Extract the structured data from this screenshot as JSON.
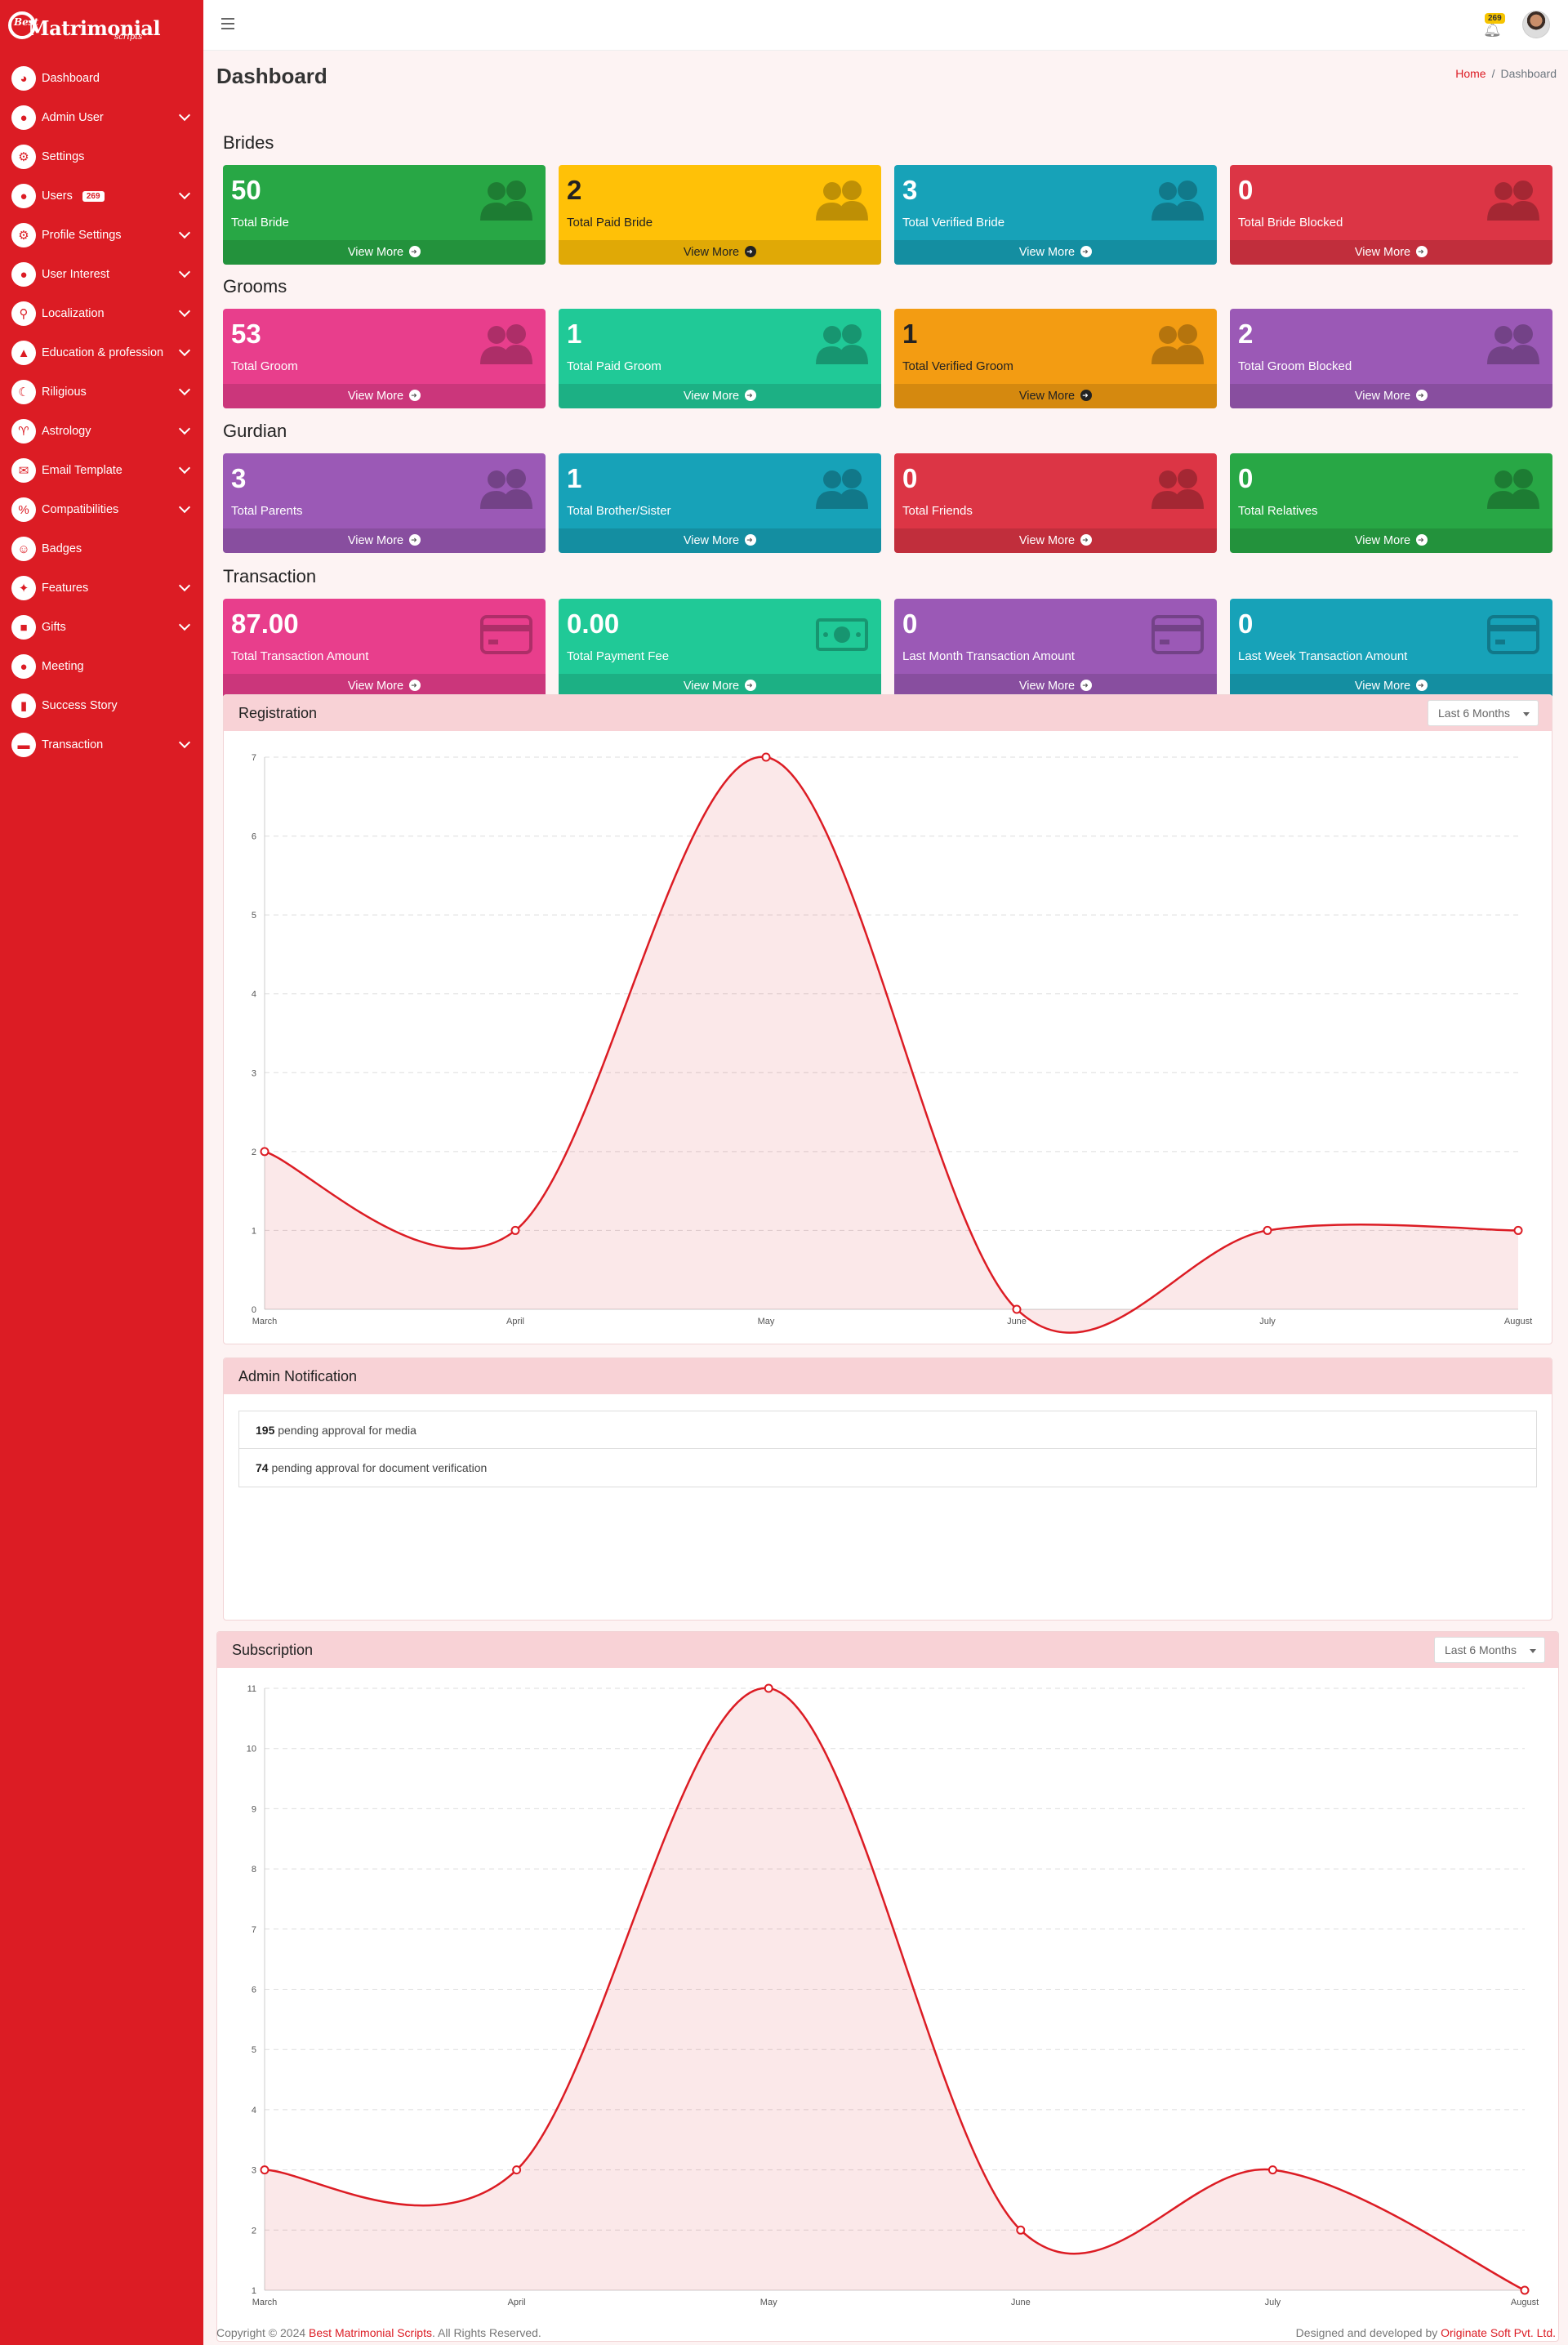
{
  "brand": {
    "name": "Matrimonial",
    "prefix": "Best",
    "suffix": "scripts"
  },
  "sidebar": {
    "items": [
      {
        "label": "Dashboard",
        "icon": "dashboard-icon",
        "glyph": "◕",
        "chevron": false
      },
      {
        "label": "Admin User",
        "icon": "user-icon",
        "glyph": "●",
        "chevron": true
      },
      {
        "label": "Settings",
        "icon": "gear-icon",
        "glyph": "⚙",
        "chevron": false
      },
      {
        "label": "Users",
        "icon": "users-icon",
        "glyph": "●",
        "chevron": true,
        "badge": "269"
      },
      {
        "label": "Profile Settings",
        "icon": "profile-settings-icon",
        "glyph": "⚙",
        "chevron": true
      },
      {
        "label": "User Interest",
        "icon": "user-interest-icon",
        "glyph": "●",
        "chevron": true
      },
      {
        "label": "Localization",
        "icon": "map-pin-icon",
        "glyph": "⚲",
        "chevron": true
      },
      {
        "label": "Education & profession",
        "icon": "graduation-cap-icon",
        "glyph": "▲",
        "chevron": true
      },
      {
        "label": "Riligious",
        "icon": "crescent-icon",
        "glyph": "☾",
        "chevron": true
      },
      {
        "label": "Astrology",
        "icon": "astrology-icon",
        "glyph": "♈",
        "chevron": true
      },
      {
        "label": "Email Template",
        "icon": "envelope-icon",
        "glyph": "✉",
        "chevron": true
      },
      {
        "label": "Compatibilities",
        "icon": "percent-icon",
        "glyph": "%",
        "chevron": true
      },
      {
        "label": "Badges",
        "icon": "badge-icon",
        "glyph": "☺",
        "chevron": false
      },
      {
        "label": "Features",
        "icon": "features-icon",
        "glyph": "✦",
        "chevron": true
      },
      {
        "label": "Gifts",
        "icon": "gift-icon",
        "glyph": "■",
        "chevron": true
      },
      {
        "label": "Meeting",
        "icon": "meeting-icon",
        "glyph": "●",
        "chevron": false
      },
      {
        "label": "Success Story",
        "icon": "book-icon",
        "glyph": "▮",
        "chevron": false
      },
      {
        "label": "Transaction",
        "icon": "credit-card-icon",
        "glyph": "▬",
        "chevron": true
      }
    ]
  },
  "topbar": {
    "notification_count": "269"
  },
  "page": {
    "title": "Dashboard",
    "breadcrumb_home": "Home",
    "breadcrumb_current": "Dashboard"
  },
  "sections": [
    {
      "title": "Brides",
      "boxes": [
        {
          "value": "50",
          "label": "Total Bride",
          "color": "#28a745",
          "icon": "users-icon",
          "more": "View More"
        },
        {
          "value": "2",
          "label": "Total Paid Bride",
          "color": "#ffc107",
          "icon": "users-icon",
          "more": "View More"
        },
        {
          "value": "3",
          "label": "Total Verified Bride",
          "color": "#17a2b8",
          "icon": "users-icon",
          "more": "View More"
        },
        {
          "value": "0",
          "label": "Total Bride Blocked",
          "color": "#dc3545",
          "icon": "users-icon",
          "more": "View More"
        }
      ]
    },
    {
      "title": "Grooms",
      "boxes": [
        {
          "value": "53",
          "label": "Total Groom",
          "color": "#e83e8c",
          "icon": "users-icon",
          "more": "View More"
        },
        {
          "value": "1",
          "label": "Total Paid Groom",
          "color": "#20c997",
          "icon": "users-icon",
          "more": "View More"
        },
        {
          "value": "1",
          "label": "Total Verified Groom",
          "color": "#f39c12",
          "icon": "users-icon",
          "more": "View More"
        },
        {
          "value": "2",
          "label": "Total Groom Blocked",
          "color": "#9b59b6",
          "icon": "users-icon",
          "more": "View More"
        }
      ]
    },
    {
      "title": "Gurdian",
      "boxes": [
        {
          "value": "3",
          "label": "Total Parents",
          "color": "#9b59b6",
          "icon": "users-icon",
          "more": "View More"
        },
        {
          "value": "1",
          "label": "Total Brother/Sister",
          "color": "#17a2b8",
          "icon": "users-icon",
          "more": "View More"
        },
        {
          "value": "0",
          "label": "Total Friends",
          "color": "#dc3545",
          "icon": "users-icon",
          "more": "View More"
        },
        {
          "value": "0",
          "label": "Total Relatives",
          "color": "#28a745",
          "icon": "users-icon",
          "more": "View More"
        }
      ]
    },
    {
      "title": "Transaction",
      "boxes": [
        {
          "value": "87.00",
          "label": "Total Transaction Amount",
          "color": "#e83e8c",
          "icon": "credit-card-icon",
          "more": "View More"
        },
        {
          "value": "0.00",
          "label": "Total Payment Fee",
          "color": "#20c997",
          "icon": "money-bill-icon",
          "more": "View More"
        },
        {
          "value": "0",
          "label": "Last Month Transaction Amount",
          "color": "#9b59b6",
          "icon": "credit-card-icon",
          "more": "View More"
        },
        {
          "value": "0",
          "label": "Last Week Transaction Amount",
          "color": "#17a2b8",
          "icon": "credit-card-icon",
          "more": "View More"
        }
      ]
    }
  ],
  "registration": {
    "title": "Registration",
    "range": "Last 6 Months"
  },
  "notifications": {
    "title": "Admin Notification",
    "items": [
      {
        "count": "195",
        "text": "pending approval for media"
      },
      {
        "count": "74",
        "text": "pending approval for document verification"
      }
    ]
  },
  "subscription": {
    "title": "Subscription",
    "range": "Last 6 Months"
  },
  "chart_data": [
    {
      "type": "area",
      "title": "Registration",
      "categories": [
        "March",
        "April",
        "May",
        "June",
        "July",
        "August"
      ],
      "values": [
        2,
        1,
        7,
        0,
        1,
        1
      ],
      "ylim": [
        0,
        7
      ],
      "yticks": [
        0,
        1,
        2,
        3,
        4,
        5,
        6,
        7
      ],
      "grid": true,
      "color": "#dc1c24"
    },
    {
      "type": "area",
      "title": "Subscription",
      "categories": [
        "March",
        "April",
        "May",
        "June",
        "July",
        "August"
      ],
      "values": [
        3,
        3,
        11,
        2,
        3,
        1
      ],
      "ylim": [
        1,
        11
      ],
      "yticks": [
        1,
        2,
        3,
        4,
        5,
        6,
        7,
        8,
        9,
        10,
        11
      ],
      "grid": true,
      "color": "#dc1c24"
    }
  ],
  "footer": {
    "copyright_prefix": "Copyright © 2024",
    "company": "Best Matrimonial Scripts",
    "rights": ". All Rights Reserved.",
    "designed_by": "Designed and developed by",
    "developer": "Originate Soft Pvt. Ltd."
  }
}
